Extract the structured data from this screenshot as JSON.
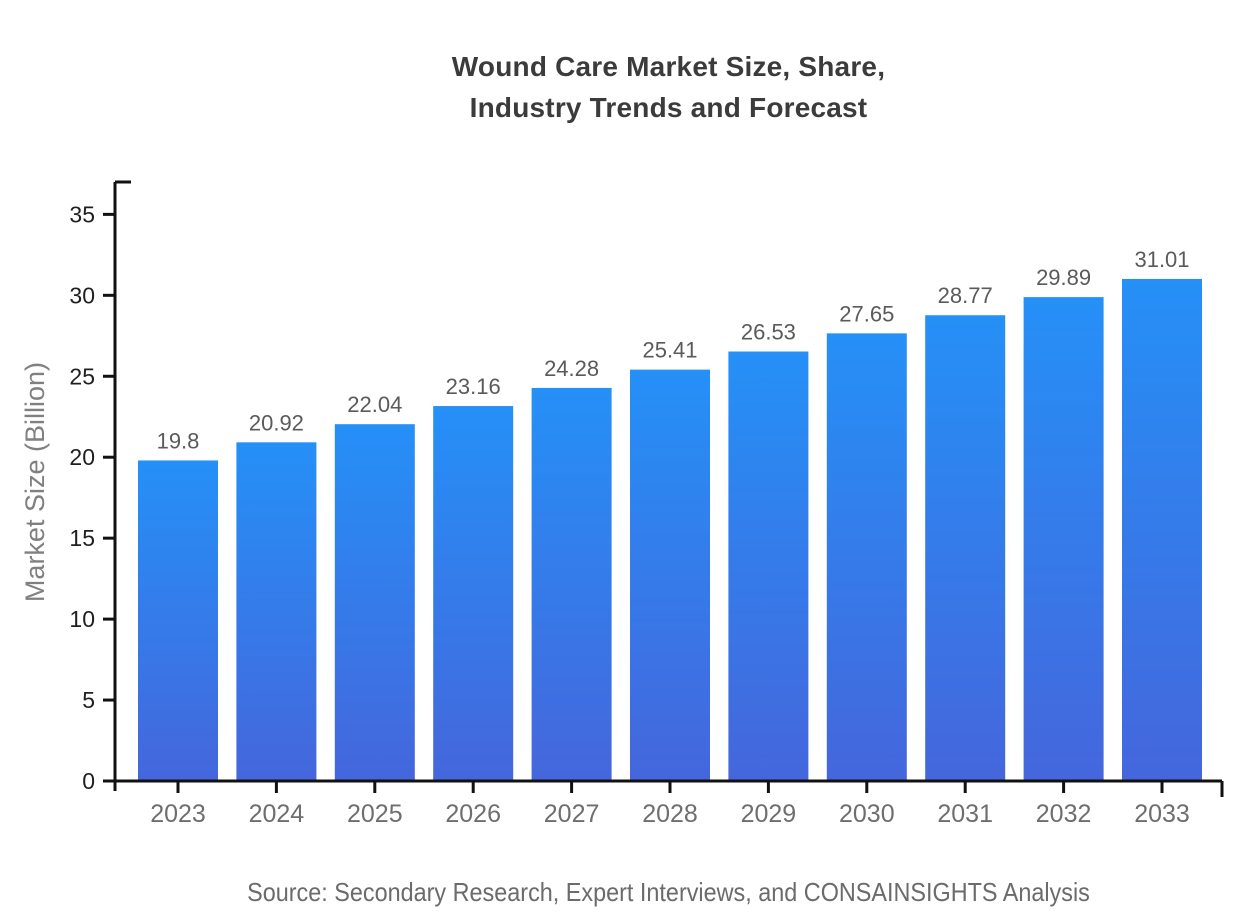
{
  "title_display": "Wound Care Market Size, Share,\nIndustry Trends and Forecast",
  "source": "Source: Secondary Research, Expert Interviews, and CONSAINSIGHTS Analysis",
  "chart_data": {
    "type": "bar",
    "title": "Wound Care Market Size, Share, Industry Trends and Forecast",
    "categories": [
      "2023",
      "2024",
      "2025",
      "2026",
      "2027",
      "2028",
      "2029",
      "2030",
      "2031",
      "2032",
      "2033"
    ],
    "values": [
      19.8,
      20.92,
      22.04,
      23.16,
      24.28,
      25.41,
      26.53,
      27.65,
      28.77,
      29.89,
      31.01
    ],
    "xlabel": "",
    "ylabel": "Market Size (Billion)",
    "ylim": [
      0,
      37
    ],
    "yticks": [
      0,
      5,
      10,
      15,
      20,
      25,
      30,
      35
    ],
    "grid": false,
    "legend": "none",
    "value_labels": true,
    "bar_gradient_top": "#2590f7",
    "bar_gradient_bottom": "#4566dc"
  },
  "colors": {
    "background": "#ffffff",
    "title": "#3b3b3b",
    "axis": "#111111",
    "ytick_label": "#1f1f1f",
    "xtick_label": "#6e6e6e",
    "value_label": "#5a5a5a",
    "ylabel": "#808080",
    "source": "#6b6b6b"
  }
}
